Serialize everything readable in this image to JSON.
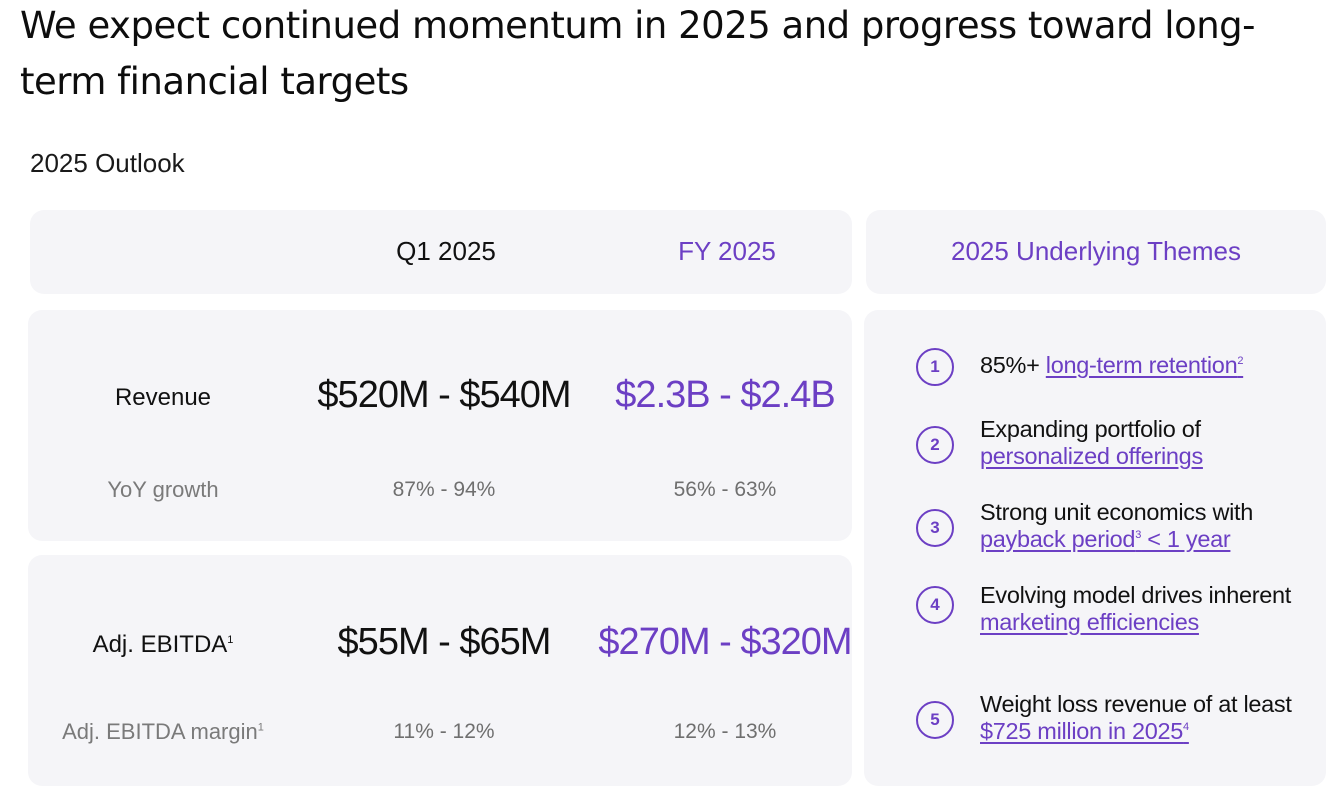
{
  "headline": "We expect continued momentum in 2025 and progress toward long-term financial targets",
  "outlook_label": "2025 Outlook",
  "columns": {
    "q1": "Q1 2025",
    "fy": "FY 2025",
    "themes": "2025 Underlying Themes"
  },
  "revenue": {
    "label": "Revenue",
    "q1": "$520M - $540M",
    "fy": "$2.3B - $2.4B",
    "growth_label": "YoY growth",
    "growth_q1": "87% - 94%",
    "growth_fy": "56% - 63%"
  },
  "ebitda": {
    "label": "Adj. EBITDA",
    "label_sup": "1",
    "q1": "$55M - $65M",
    "fy": "$270M - $320M",
    "margin_label": "Adj. EBITDA margin",
    "margin_sup": "1",
    "margin_q1": "11% - 12%",
    "margin_fy": "12% - 13%"
  },
  "themes": [
    {
      "num": "1",
      "pre": "85%+ ",
      "link": "long-term retention",
      "sup": "2",
      "post": ""
    },
    {
      "num": "2",
      "pre": "Expanding portfolio of ",
      "link": "personalized offerings",
      "sup": "",
      "post": ""
    },
    {
      "num": "3",
      "pre": "Strong unit economics with ",
      "link": "payback period",
      "sup": "3",
      "link2": " < 1 year"
    },
    {
      "num": "4",
      "pre": "Evolving model drives inherent ",
      "link": "marketing efficiencies",
      "sup": "",
      "post": ""
    },
    {
      "num": "5",
      "pre": "Weight loss revenue of at least ",
      "link": "$725 million in 2025",
      "sup": "4",
      "post": ""
    }
  ],
  "colors": {
    "accent": "#6c3fc4",
    "panel": "#f5f5f8"
  }
}
